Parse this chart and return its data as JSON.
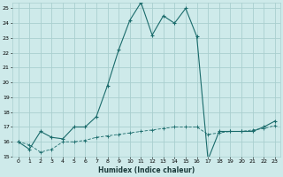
{
  "xlabel": "Humidex (Indice chaleur)",
  "background_color": "#ceeaea",
  "grid_color": "#aacfcf",
  "line_color": "#1a6b6b",
  "xlim": [
    -0.5,
    23.5
  ],
  "ylim": [
    15,
    25.4
  ],
  "yticks": [
    15,
    16,
    17,
    18,
    19,
    20,
    21,
    22,
    23,
    24,
    25
  ],
  "xticks": [
    0,
    1,
    2,
    3,
    4,
    5,
    6,
    7,
    8,
    9,
    10,
    11,
    12,
    13,
    14,
    15,
    16,
    17,
    18,
    19,
    20,
    21,
    22,
    23
  ],
  "series1_x": [
    0,
    1,
    2,
    3,
    4,
    5,
    6,
    7,
    8,
    9,
    10,
    11,
    12,
    13,
    14,
    15,
    16,
    17,
    18,
    19,
    20,
    21,
    22,
    23
  ],
  "series1_y": [
    16.0,
    15.5,
    16.7,
    16.3,
    16.2,
    17.0,
    17.0,
    17.7,
    19.8,
    22.2,
    24.2,
    25.4,
    23.2,
    24.5,
    24.0,
    25.0,
    23.1,
    14.8,
    16.7,
    16.7,
    16.7,
    16.7,
    17.0,
    17.4
  ],
  "series2_x": [
    0,
    1,
    2,
    3,
    4,
    5,
    6,
    7,
    8,
    9,
    10,
    11,
    12,
    13,
    14,
    15,
    16,
    17,
    18,
    19,
    20,
    21,
    22,
    23
  ],
  "series2_y": [
    16.0,
    15.8,
    15.3,
    15.5,
    16.0,
    16.0,
    16.1,
    16.3,
    16.4,
    16.5,
    16.6,
    16.7,
    16.8,
    16.9,
    17.0,
    17.0,
    17.0,
    16.5,
    16.6,
    16.7,
    16.7,
    16.8,
    16.9,
    17.1
  ]
}
